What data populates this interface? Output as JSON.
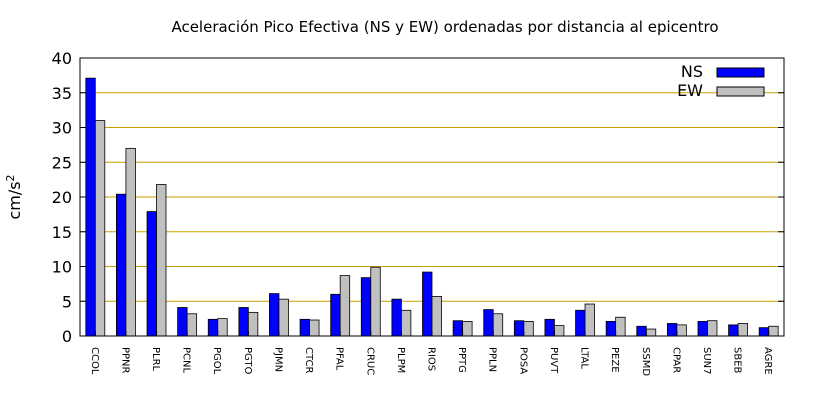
{
  "chart_data": {
    "type": "bar",
    "title": "Aceleración Pico Efectiva (NS y EW) ordenadas por distancia al epicentro",
    "ylabel_base": "cm/s",
    "ylabel_exp": "2",
    "xlabel": "",
    "ylim": [
      0,
      40
    ],
    "yticks": [
      0,
      5,
      10,
      15,
      20,
      25,
      30,
      35,
      40
    ],
    "grid": "horizontal",
    "legend_position": "top-right",
    "categories": [
      "CCOL",
      "PPNR",
      "PLRL",
      "PCNL",
      "PGOL",
      "PGTO",
      "PJMN",
      "CTCR",
      "PFAL",
      "CRUC",
      "PLPM",
      "RIOS",
      "PPTG",
      "PPLN",
      "POSA",
      "PUVT",
      "LTAL",
      "PEZE",
      "SSMD",
      "CPAR",
      "SUN7",
      "SBEB",
      "AGRE"
    ],
    "series": [
      {
        "name": "NS",
        "color": "#0000ff",
        "values": [
          37.1,
          20.4,
          17.9,
          4.1,
          2.4,
          4.1,
          6.1,
          2.4,
          6.0,
          8.4,
          5.3,
          9.2,
          2.2,
          3.8,
          2.2,
          2.4,
          3.7,
          2.1,
          1.4,
          1.8,
          2.1,
          1.6,
          1.2
        ]
      },
      {
        "name": "EW",
        "color": "#c0c0c0",
        "values": [
          31.0,
          27.0,
          21.8,
          3.2,
          2.5,
          3.4,
          5.3,
          2.3,
          8.7,
          9.9,
          3.7,
          5.7,
          2.1,
          3.2,
          2.1,
          1.5,
          4.6,
          2.7,
          1.0,
          1.6,
          2.2,
          1.8,
          1.4
        ]
      }
    ]
  }
}
